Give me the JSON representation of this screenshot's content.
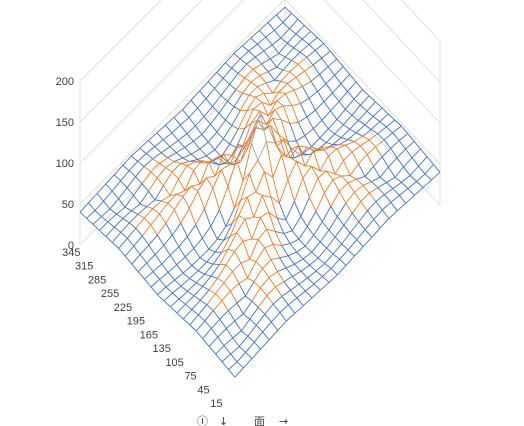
{
  "chart_data": {
    "type": "surface",
    "title": "",
    "xlabel": "",
    "ylabel": "",
    "zlabel": "",
    "z_ticks": [
      "0",
      "50",
      "100",
      "150",
      "200"
    ],
    "zlim": [
      0,
      200
    ],
    "y_ticks": [
      "15",
      "45",
      "75",
      "105",
      "135",
      "165",
      "195",
      "225",
      "255",
      "285",
      "315",
      "345"
    ],
    "ylim": [
      0,
      360
    ],
    "grid": true,
    "legend": "none",
    "band_colors": [
      "#4472c4",
      "#ed7d31",
      "#a5a5a5",
      "#ffc000"
    ],
    "band_ranges": [
      [
        0,
        50
      ],
      [
        50,
        100
      ],
      [
        100,
        150
      ],
      [
        150,
        200
      ]
    ],
    "surface_grid": {
      "x": [
        0,
        15,
        30,
        45,
        60,
        75,
        90,
        105,
        120,
        135,
        150,
        165,
        180,
        195,
        210,
        225,
        240,
        255,
        270,
        285,
        300,
        315,
        330,
        345,
        360
      ],
      "y": [
        0,
        15,
        30,
        45,
        60,
        75,
        90,
        105,
        120,
        135,
        150,
        165,
        180,
        195,
        210,
        225,
        240,
        255,
        270,
        285,
        300,
        315,
        330,
        345,
        360
      ],
      "z_rows": [
        [
          40,
          41,
          42,
          43,
          44,
          45,
          46,
          45,
          44,
          43,
          42,
          41,
          40,
          41,
          42,
          43,
          44,
          45,
          46,
          45,
          44,
          43,
          42,
          41,
          40
        ],
        [
          41,
          40,
          41,
          43,
          45,
          47,
          48,
          47,
          45,
          43,
          41,
          40,
          39,
          40,
          41,
          43,
          45,
          47,
          48,
          47,
          45,
          43,
          41,
          40,
          41
        ],
        [
          42,
          41,
          40,
          42,
          45,
          48,
          50,
          49,
          46,
          43,
          40,
          38,
          37,
          38,
          40,
          43,
          46,
          49,
          50,
          48,
          45,
          42,
          40,
          41,
          42
        ],
        [
          43,
          43,
          42,
          40,
          44,
          48,
          52,
          52,
          48,
          44,
          40,
          37,
          35,
          37,
          40,
          44,
          48,
          52,
          52,
          48,
          44,
          40,
          42,
          43,
          43
        ],
        [
          44,
          45,
          45,
          44,
          42,
          47,
          53,
          55,
          52,
          46,
          40,
          36,
          34,
          36,
          40,
          46,
          52,
          55,
          53,
          47,
          42,
          44,
          45,
          45,
          44
        ],
        [
          45,
          47,
          48,
          48,
          47,
          45,
          52,
          58,
          58,
          50,
          42,
          36,
          33,
          36,
          42,
          50,
          58,
          58,
          52,
          45,
          47,
          48,
          48,
          47,
          45
        ],
        [
          46,
          48,
          50,
          52,
          53,
          52,
          48,
          58,
          64,
          58,
          46,
          38,
          33,
          38,
          46,
          58,
          64,
          58,
          48,
          52,
          53,
          52,
          50,
          48,
          46
        ],
        [
          45,
          47,
          49,
          52,
          55,
          58,
          58,
          52,
          66,
          68,
          55,
          42,
          35,
          42,
          55,
          68,
          66,
          52,
          58,
          58,
          55,
          52,
          49,
          47,
          45
        ],
        [
          44,
          45,
          46,
          48,
          52,
          58,
          64,
          66,
          58,
          74,
          70,
          52,
          40,
          52,
          70,
          74,
          58,
          66,
          64,
          58,
          52,
          48,
          46,
          45,
          44
        ],
        [
          43,
          43,
          43,
          44,
          46,
          50,
          58,
          68,
          74,
          66,
          82,
          70,
          52,
          70,
          82,
          66,
          74,
          68,
          58,
          50,
          46,
          44,
          43,
          43,
          43
        ],
        [
          42,
          41,
          40,
          40,
          40,
          42,
          46,
          55,
          70,
          82,
          78,
          92,
          75,
          92,
          78,
          82,
          70,
          55,
          46,
          42,
          40,
          40,
          40,
          41,
          42
        ],
        [
          41,
          40,
          38,
          37,
          36,
          36,
          38,
          42,
          52,
          70,
          92,
          98,
          110,
          98,
          92,
          70,
          52,
          42,
          38,
          36,
          36,
          37,
          38,
          40,
          41
        ],
        [
          40,
          39,
          37,
          35,
          34,
          33,
          33,
          35,
          40,
          52,
          75,
          110,
          135,
          110,
          75,
          52,
          40,
          35,
          33,
          33,
          34,
          35,
          37,
          39,
          40
        ],
        [
          41,
          40,
          38,
          37,
          36,
          36,
          38,
          42,
          52,
          70,
          92,
          98,
          110,
          98,
          92,
          70,
          52,
          42,
          38,
          36,
          36,
          37,
          38,
          40,
          41
        ],
        [
          42,
          41,
          40,
          40,
          40,
          42,
          46,
          55,
          70,
          82,
          78,
          92,
          75,
          92,
          78,
          82,
          70,
          55,
          46,
          42,
          40,
          40,
          40,
          41,
          42
        ],
        [
          43,
          43,
          43,
          44,
          46,
          50,
          58,
          68,
          74,
          66,
          82,
          70,
          52,
          70,
          82,
          66,
          74,
          68,
          58,
          50,
          46,
          44,
          43,
          43,
          43
        ],
        [
          44,
          45,
          46,
          48,
          52,
          58,
          64,
          66,
          58,
          74,
          70,
          52,
          40,
          52,
          70,
          74,
          58,
          66,
          64,
          58,
          52,
          48,
          46,
          45,
          44
        ],
        [
          45,
          47,
          49,
          52,
          55,
          58,
          58,
          52,
          66,
          68,
          55,
          42,
          35,
          42,
          55,
          68,
          66,
          52,
          58,
          58,
          55,
          52,
          49,
          47,
          45
        ],
        [
          46,
          48,
          50,
          52,
          53,
          52,
          48,
          58,
          64,
          58,
          46,
          38,
          33,
          38,
          46,
          58,
          64,
          58,
          48,
          52,
          53,
          52,
          50,
          48,
          46
        ],
        [
          45,
          47,
          48,
          48,
          47,
          45,
          52,
          58,
          58,
          50,
          42,
          36,
          33,
          36,
          42,
          50,
          58,
          58,
          52,
          45,
          47,
          48,
          48,
          47,
          45
        ],
        [
          44,
          45,
          45,
          44,
          42,
          47,
          53,
          55,
          52,
          46,
          40,
          36,
          34,
          36,
          40,
          46,
          52,
          55,
          53,
          47,
          42,
          44,
          45,
          45,
          44
        ],
        [
          43,
          43,
          42,
          40,
          44,
          48,
          52,
          52,
          48,
          44,
          40,
          37,
          35,
          37,
          40,
          44,
          48,
          52,
          52,
          48,
          44,
          40,
          42,
          43,
          43
        ],
        [
          42,
          41,
          40,
          42,
          45,
          48,
          50,
          49,
          46,
          43,
          40,
          38,
          37,
          38,
          40,
          43,
          46,
          49,
          50,
          48,
          45,
          42,
          40,
          41,
          42
        ],
        [
          41,
          40,
          41,
          43,
          45,
          47,
          48,
          47,
          45,
          43,
          41,
          40,
          39,
          40,
          41,
          43,
          45,
          47,
          48,
          47,
          45,
          43,
          41,
          40,
          41
        ],
        [
          40,
          41,
          42,
          43,
          44,
          45,
          46,
          45,
          44,
          43,
          42,
          41,
          40,
          41,
          42,
          43,
          44,
          45,
          46,
          45,
          44,
          43,
          42,
          41,
          40
        ]
      ]
    }
  },
  "controls": {
    "rotate_icon": "Ⓘ",
    "down_arrow": "↓",
    "wall_icon": "面",
    "right_arrow": "→"
  }
}
